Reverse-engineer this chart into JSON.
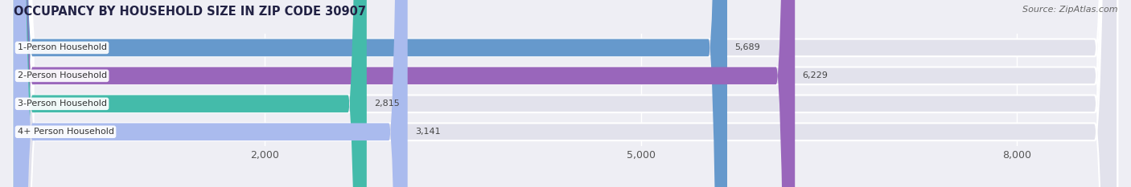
{
  "title": "OCCUPANCY BY HOUSEHOLD SIZE IN ZIP CODE 30907",
  "source": "Source: ZipAtlas.com",
  "categories": [
    "1-Person Household",
    "2-Person Household",
    "3-Person Household",
    "4+ Person Household"
  ],
  "values": [
    5689,
    6229,
    2815,
    3141
  ],
  "bar_colors": [
    "#6699cc",
    "#9966bb",
    "#44bbaa",
    "#aabbee"
  ],
  "background_color": "#eeeef4",
  "bar_bg_color": "#e2e2ec",
  "xlim": [
    0,
    8800
  ],
  "xticks": [
    2000,
    5000,
    8000
  ],
  "tick_fontsize": 9,
  "title_fontsize": 10.5,
  "source_fontsize": 8,
  "bar_height": 0.62,
  "value_fontsize": 8,
  "label_fontsize": 8
}
